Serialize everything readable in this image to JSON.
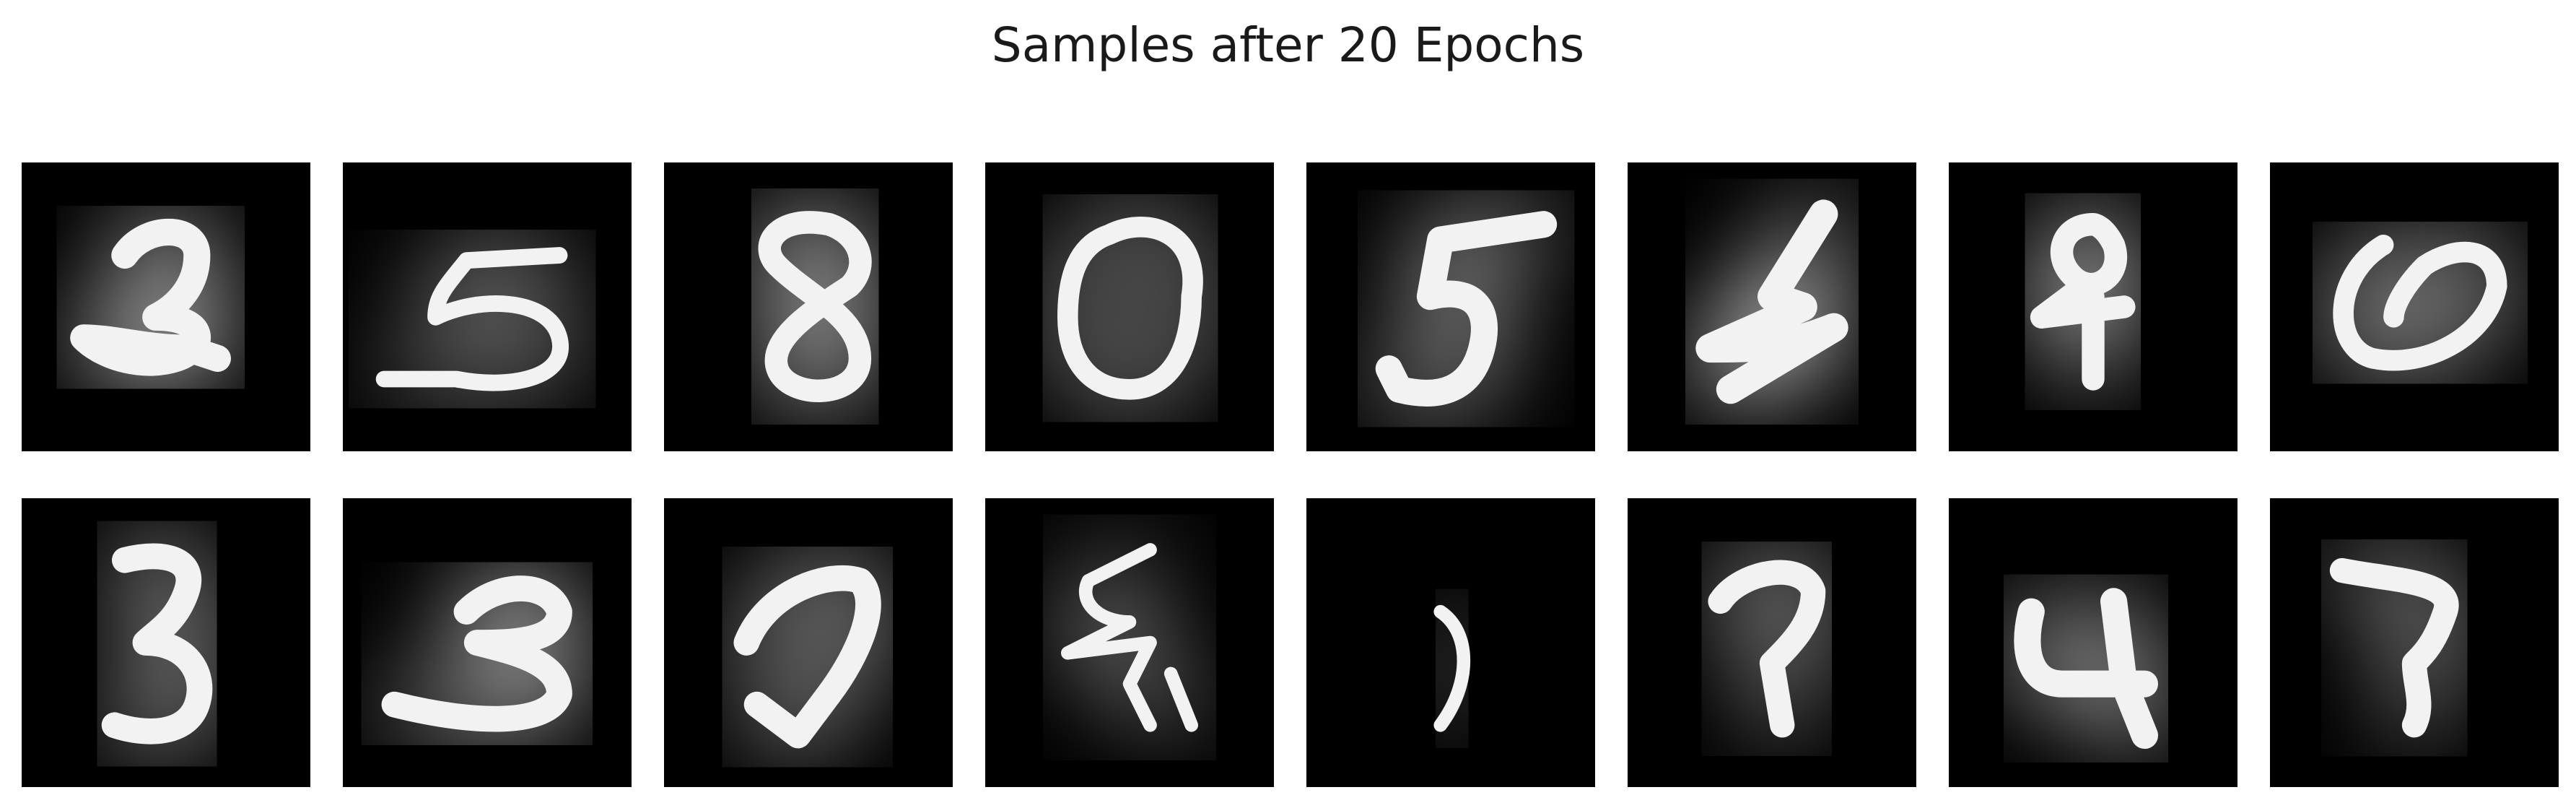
{
  "figure": {
    "title": "Samples after 20 Epochs"
  },
  "grid": {
    "rows": 2,
    "cols": 8,
    "background_color": "#000000",
    "stroke_color": "#f2f2f2"
  },
  "samples": [
    {
      "id": "row1-col1",
      "depicts": "handwritten digit resembling 2"
    },
    {
      "id": "row1-col2",
      "depicts": "handwritten digit resembling 5"
    },
    {
      "id": "row1-col3",
      "depicts": "handwritten digit resembling 8"
    },
    {
      "id": "row1-col4",
      "depicts": "handwritten digit resembling 0"
    },
    {
      "id": "row1-col5",
      "depicts": "handwritten digit resembling 5"
    },
    {
      "id": "row1-col6",
      "depicts": "handwritten digit resembling 4"
    },
    {
      "id": "row1-col7",
      "depicts": "handwritten digit resembling 8"
    },
    {
      "id": "row1-col8",
      "depicts": "handwritten digit resembling 0"
    },
    {
      "id": "row2-col1",
      "depicts": "handwritten digit resembling 3"
    },
    {
      "id": "row2-col2",
      "depicts": "handwritten digit resembling 3"
    },
    {
      "id": "row2-col3",
      "depicts": "handwritten digit resembling 7"
    },
    {
      "id": "row2-col4",
      "depicts": "handwritten digit resembling 5"
    },
    {
      "id": "row2-col5",
      "depicts": "faint curved stroke"
    },
    {
      "id": "row2-col6",
      "depicts": "handwritten digit resembling 7"
    },
    {
      "id": "row2-col7",
      "depicts": "handwritten digit resembling 4"
    },
    {
      "id": "row2-col8",
      "depicts": "handwritten digit resembling 2"
    }
  ]
}
